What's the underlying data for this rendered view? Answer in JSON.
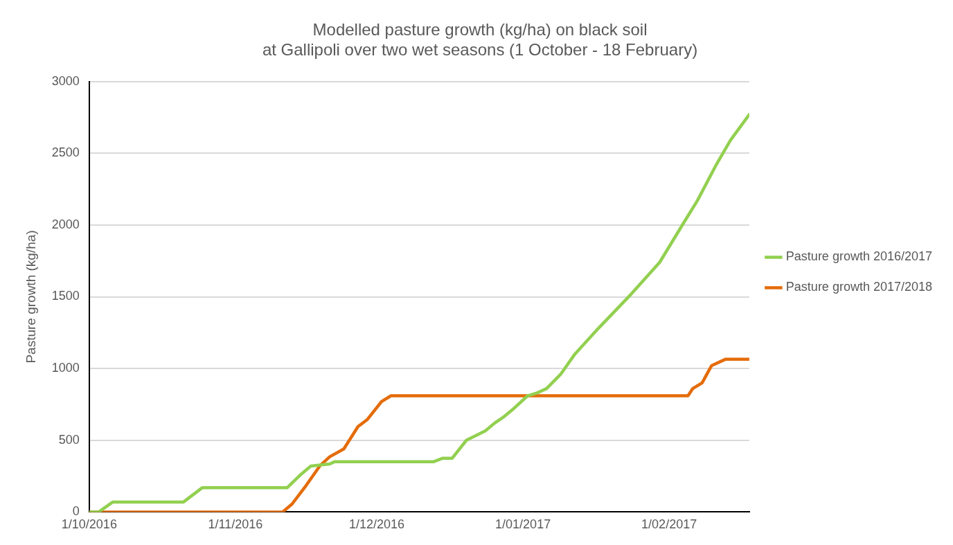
{
  "chart_data": {
    "type": "line",
    "title": "Modelled pasture growth (kg/ha) on black soil\nat Gallipoli over two wet seasons (1 October - 18 February)",
    "ylabel": "Pasture growth (kg/ha)",
    "series": [
      {
        "name": "Pasture growth 2016/2017",
        "color": "#92d050",
        "x": [
          "2016-10-01",
          "2016-10-03",
          "2016-10-06",
          "2016-10-21",
          "2016-10-25",
          "2016-11-12",
          "2016-11-15",
          "2016-11-17",
          "2016-11-21",
          "2016-11-22",
          "2016-12-13",
          "2016-12-15",
          "2016-12-17",
          "2016-12-20",
          "2016-12-24",
          "2016-12-26",
          "2016-12-28",
          "2016-12-30",
          "2017-01-02",
          "2017-01-04",
          "2017-01-06",
          "2017-01-09",
          "2017-01-12",
          "2017-01-17",
          "2017-01-24",
          "2017-01-30",
          "2017-02-04",
          "2017-02-07",
          "2017-02-11",
          "2017-02-14",
          "2017-02-18"
        ],
        "values": [
          0,
          0,
          70,
          70,
          170,
          170,
          265,
          320,
          335,
          350,
          350,
          375,
          375,
          500,
          565,
          620,
          665,
          720,
          810,
          830,
          860,
          960,
          1100,
          1280,
          1520,
          1740,
          2010,
          2170,
          2420,
          2590,
          2770
        ]
      },
      {
        "name": "Pasture growth 2017/2018",
        "color": "#e46c0a",
        "x": [
          "2016-10-01",
          "2016-11-11",
          "2016-11-13",
          "2016-11-16",
          "2016-11-19",
          "2016-11-21",
          "2016-11-24",
          "2016-11-27",
          "2016-11-29",
          "2016-12-02",
          "2016-12-04",
          "2017-02-05",
          "2017-02-06",
          "2017-02-08",
          "2017-02-09",
          "2017-02-10",
          "2017-02-13",
          "2017-02-18"
        ],
        "values": [
          0,
          0,
          55,
          185,
          325,
          385,
          440,
          595,
          645,
          770,
          810,
          810,
          860,
          900,
          960,
          1020,
          1065,
          1065
        ]
      }
    ],
    "xlim": [
      "2016-10-01",
      "2017-02-18"
    ],
    "xticks": [
      {
        "value": "2016-10-01",
        "label": "1/10/2016"
      },
      {
        "value": "2016-11-01",
        "label": "1/11/2016"
      },
      {
        "value": "2016-12-01",
        "label": "1/12/2016"
      },
      {
        "value": "2017-01-01",
        "label": "1/01/2017"
      },
      {
        "value": "2017-02-01",
        "label": "1/02/2017"
      }
    ],
    "ylim": [
      0,
      3000
    ],
    "yticks": [
      0,
      500,
      1000,
      1500,
      2000,
      2500,
      3000
    ],
    "grid": "y",
    "legend": "right",
    "marker": "none",
    "line_style": "solid"
  }
}
